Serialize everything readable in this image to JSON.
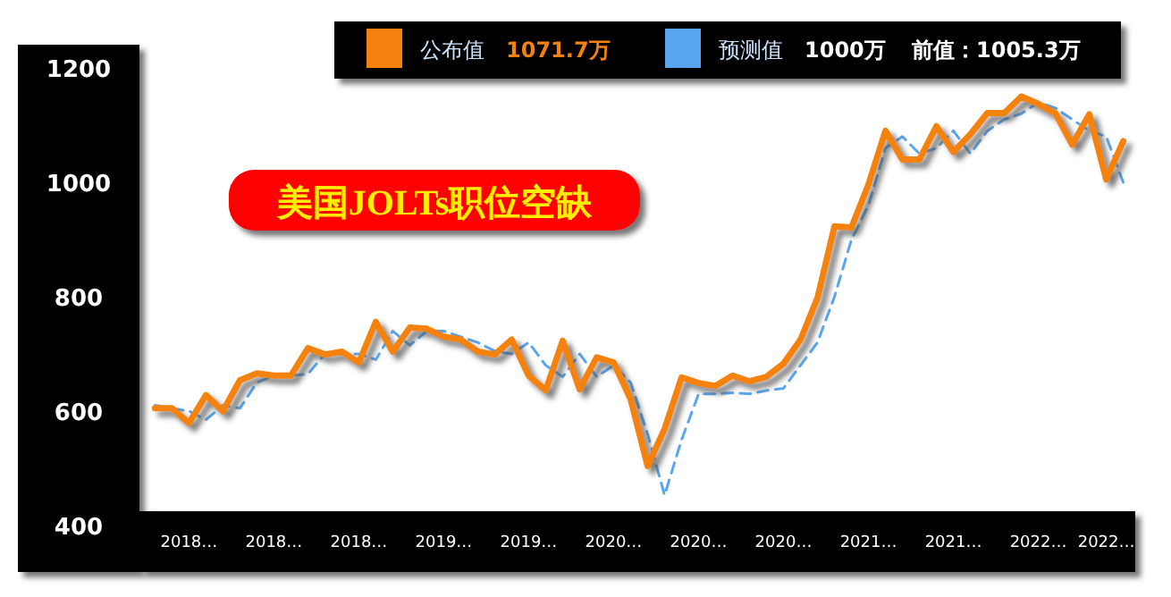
{
  "chart_data": {
    "type": "line",
    "title": "美国JOLTs职位空缺",
    "categories": [
      null,
      null,
      "2018…",
      null,
      null,
      null,
      null,
      "2018…",
      null,
      null,
      null,
      null,
      "2018…",
      null,
      null,
      null,
      null,
      "2019…",
      null,
      null,
      null,
      null,
      "2019…",
      null,
      null,
      null,
      null,
      "2020…",
      null,
      null,
      null,
      null,
      "2020…",
      null,
      null,
      null,
      null,
      "2020…",
      null,
      null,
      null,
      null,
      "2021…",
      null,
      null,
      null,
      null,
      "2021…",
      null,
      null,
      null,
      null,
      "2022…",
      null,
      null,
      null,
      "2022…",
      null
    ],
    "series": [
      {
        "name": "公布值",
        "color": "#f5820f",
        "line_style": "solid",
        "values": [
          605,
          605,
          579,
          628,
          600,
          654,
          666,
          662,
          662,
          710,
          699,
          704,
          685,
          756,
          704,
          746,
          744,
          730,
          725,
          704,
          699,
          725,
          662,
          636,
          723,
          638,
          694,
          685,
          621,
          504,
          569,
          659,
          649,
          644,
          662,
          652,
          660,
          683,
          725,
          798,
          923,
          921,
          996,
          1090,
          1040,
          1040,
          1098,
          1053,
          1084,
          1121,
          1121,
          1150,
          1137,
          1121,
          1066,
          1119,
          1005,
          1072
        ]
      },
      {
        "name": "预测值",
        "color": "#5aa5ef",
        "line_style": "dashed",
        "values": [
          610,
          605,
          600,
          585,
          610,
          605,
          650,
          662,
          662,
          665,
          700,
          700,
          700,
          690,
          740,
          715,
          740,
          740,
          730,
          720,
          705,
          700,
          720,
          680,
          660,
          700,
          660,
          680,
          650,
          560,
          453,
          550,
          630,
          630,
          632,
          630,
          636,
          640,
          680,
          720,
          800,
          900,
          960,
          1060,
          1080,
          1050,
          1060,
          1090,
          1050,
          1090,
          1110,
          1120,
          1140,
          1130,
          1110,
          1090,
          1080,
          1000
        ]
      }
    ],
    "annotations": [
      "1071.7万",
      "1000万",
      "前值：1005.3万"
    ],
    "ylim": [
      400,
      1200
    ],
    "yticks": [
      400,
      600,
      800,
      1000,
      1200
    ],
    "legend": "top",
    "grid": false,
    "marker": "none"
  }
}
